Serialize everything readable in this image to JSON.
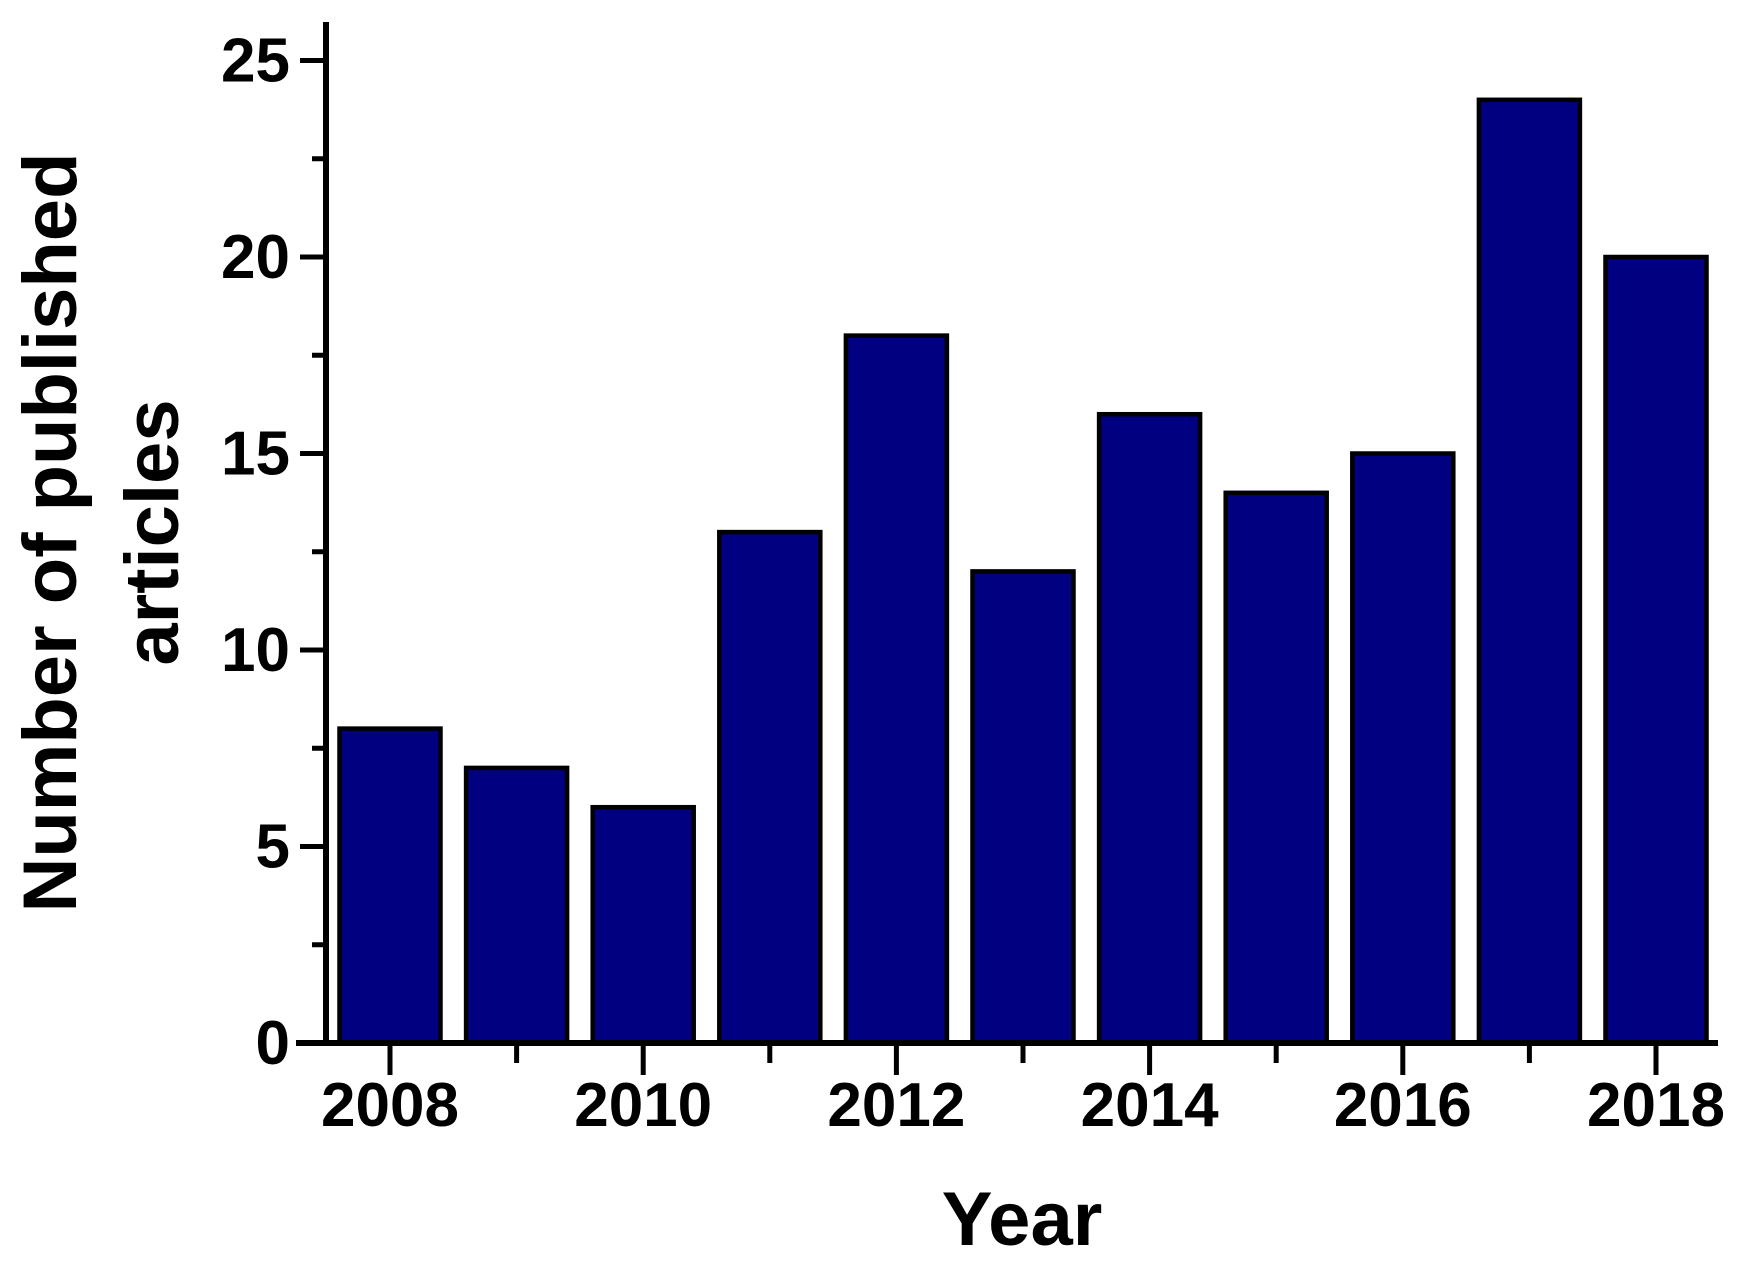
{
  "chart_data": {
    "type": "bar",
    "title": "",
    "xlabel": "Year",
    "ylabel": "Number of published articles",
    "ylabel_lines": [
      "Number of published",
      "articles"
    ],
    "categories": [
      2008,
      2009,
      2010,
      2011,
      2012,
      2013,
      2014,
      2015,
      2016,
      2017,
      2018
    ],
    "values": [
      8,
      7,
      6,
      13,
      18,
      12,
      16,
      14,
      15,
      24,
      20
    ],
    "ylim": [
      0,
      25
    ],
    "y_major_ticks": [
      0,
      5,
      10,
      15,
      20,
      25
    ],
    "y_minor_ticks": [
      2.5,
      7.5,
      12.5,
      17.5,
      22.5
    ],
    "x_labeled_years": [
      2008,
      2010,
      2012,
      2014,
      2016,
      2018
    ],
    "x_minor_years": [
      2009,
      2011,
      2013,
      2015,
      2017
    ],
    "bar_color": "#000080",
    "bar_border_color": "#000000",
    "axis_color": "#000000",
    "background_color": "#ffffff",
    "grid": false,
    "legend": "none"
  }
}
